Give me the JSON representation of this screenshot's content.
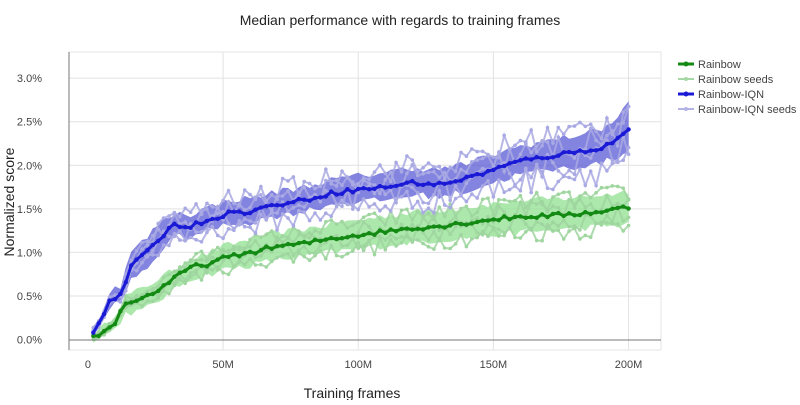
{
  "chart_data": {
    "type": "line",
    "title": "Median performance with regards to training frames",
    "xlabel": "Training frames",
    "ylabel": "Normalized score",
    "xlim": [
      -7,
      212
    ],
    "ylim": [
      -0.12,
      3.3
    ],
    "x_ticks": [
      0,
      50,
      100,
      150,
      200
    ],
    "x_tick_labels": [
      "0",
      "50M",
      "100M",
      "150M",
      "200M"
    ],
    "y_ticks": [
      0,
      0.5,
      1.0,
      1.5,
      2.0,
      2.5,
      3.0
    ],
    "y_tick_labels": [
      "0.0%",
      "0.5%",
      "1.0%",
      "1.5%",
      "2.0%",
      "2.5%",
      "3.0%"
    ],
    "grid": true,
    "legend_position": "top-right",
    "legend": [
      {
        "label": "Rainbow",
        "color": "#138a13",
        "style": "bold"
      },
      {
        "label": "Rainbow seeds",
        "color": "#a6d8a6",
        "style": "light"
      },
      {
        "label": "Rainbow-IQN",
        "color": "#1a1ad6",
        "style": "bold"
      },
      {
        "label": "Rainbow-IQN seeds",
        "color": "#b3b3e6",
        "style": "light"
      }
    ],
    "x_range": [
      2,
      200
    ],
    "series": [
      {
        "name": "Rainbow",
        "color": "#138a13",
        "band_color": "#90e090",
        "anchors": [
          [
            2,
            0.03
          ],
          [
            5,
            0.06
          ],
          [
            10,
            0.2
          ],
          [
            14,
            0.42
          ],
          [
            20,
            0.47
          ],
          [
            25,
            0.55
          ],
          [
            32,
            0.7
          ],
          [
            38,
            0.83
          ],
          [
            45,
            0.87
          ],
          [
            50,
            0.93
          ],
          [
            60,
            1.0
          ],
          [
            70,
            1.07
          ],
          [
            80,
            1.1
          ],
          [
            90,
            1.16
          ],
          [
            100,
            1.2
          ],
          [
            110,
            1.24
          ],
          [
            120,
            1.28
          ],
          [
            130,
            1.3
          ],
          [
            140,
            1.34
          ],
          [
            150,
            1.38
          ],
          [
            160,
            1.41
          ],
          [
            170,
            1.42
          ],
          [
            180,
            1.44
          ],
          [
            190,
            1.47
          ],
          [
            200,
            1.52
          ]
        ],
        "band": [
          [
            2,
            0.0,
            0.06
          ],
          [
            5,
            0.03,
            0.12
          ],
          [
            10,
            0.12,
            0.3
          ],
          [
            14,
            0.3,
            0.5
          ],
          [
            20,
            0.33,
            0.58
          ],
          [
            25,
            0.42,
            0.68
          ],
          [
            32,
            0.58,
            0.8
          ],
          [
            38,
            0.7,
            0.92
          ],
          [
            45,
            0.75,
            1.0
          ],
          [
            50,
            0.8,
            1.07
          ],
          [
            60,
            0.85,
            1.15
          ],
          [
            70,
            0.92,
            1.22
          ],
          [
            80,
            0.95,
            1.27
          ],
          [
            90,
            1.0,
            1.32
          ],
          [
            100,
            1.04,
            1.37
          ],
          [
            110,
            1.08,
            1.42
          ],
          [
            120,
            1.12,
            1.46
          ],
          [
            130,
            1.14,
            1.49
          ],
          [
            140,
            1.17,
            1.52
          ],
          [
            150,
            1.2,
            1.56
          ],
          [
            160,
            1.23,
            1.59
          ],
          [
            170,
            1.25,
            1.61
          ],
          [
            180,
            1.27,
            1.63
          ],
          [
            190,
            1.3,
            1.66
          ],
          [
            200,
            1.32,
            1.7
          ]
        ]
      },
      {
        "name": "Rainbow-IQN",
        "color": "#1a1ad6",
        "band_color": "#5a5ad6",
        "anchors": [
          [
            2,
            0.1
          ],
          [
            5,
            0.22
          ],
          [
            8,
            0.45
          ],
          [
            12,
            0.5
          ],
          [
            16,
            0.85
          ],
          [
            22,
            1.0
          ],
          [
            27,
            1.18
          ],
          [
            32,
            1.32
          ],
          [
            38,
            1.3
          ],
          [
            45,
            1.38
          ],
          [
            52,
            1.45
          ],
          [
            60,
            1.47
          ],
          [
            70,
            1.55
          ],
          [
            80,
            1.6
          ],
          [
            90,
            1.68
          ],
          [
            100,
            1.72
          ],
          [
            110,
            1.75
          ],
          [
            120,
            1.8
          ],
          [
            130,
            1.78
          ],
          [
            140,
            1.85
          ],
          [
            150,
            1.95
          ],
          [
            160,
            2.05
          ],
          [
            170,
            2.1
          ],
          [
            180,
            2.15
          ],
          [
            190,
            2.2
          ],
          [
            196,
            2.3
          ],
          [
            200,
            2.42
          ]
        ],
        "band": [
          [
            2,
            0.05,
            0.15
          ],
          [
            5,
            0.15,
            0.3
          ],
          [
            8,
            0.38,
            0.55
          ],
          [
            12,
            0.42,
            0.62
          ],
          [
            16,
            0.68,
            1.0
          ],
          [
            22,
            0.82,
            1.18
          ],
          [
            27,
            1.02,
            1.35
          ],
          [
            32,
            1.18,
            1.45
          ],
          [
            38,
            1.18,
            1.44
          ],
          [
            45,
            1.26,
            1.52
          ],
          [
            52,
            1.32,
            1.6
          ],
          [
            60,
            1.34,
            1.62
          ],
          [
            70,
            1.42,
            1.7
          ],
          [
            80,
            1.47,
            1.75
          ],
          [
            90,
            1.55,
            1.83
          ],
          [
            100,
            1.58,
            1.88
          ],
          [
            110,
            1.6,
            1.92
          ],
          [
            120,
            1.66,
            1.97
          ],
          [
            130,
            1.64,
            1.95
          ],
          [
            140,
            1.7,
            2.02
          ],
          [
            150,
            1.8,
            2.12
          ],
          [
            160,
            1.9,
            2.22
          ],
          [
            170,
            1.94,
            2.28
          ],
          [
            180,
            1.98,
            2.34
          ],
          [
            190,
            2.02,
            2.42
          ],
          [
            196,
            2.1,
            2.55
          ],
          [
            200,
            2.15,
            2.72
          ]
        ]
      }
    ],
    "seed_series": [
      {
        "name": "Rainbow seeds",
        "color": "#9fd59f",
        "of": "Rainbow",
        "offsets": [
          -0.18,
          -0.08,
          0.06,
          0.16
        ]
      },
      {
        "name": "Rainbow-IQN seeds",
        "color": "#a9a9e3",
        "of": "Rainbow-IQN",
        "offsets": [
          -0.16,
          -0.07,
          0.05,
          0.15
        ]
      }
    ]
  }
}
